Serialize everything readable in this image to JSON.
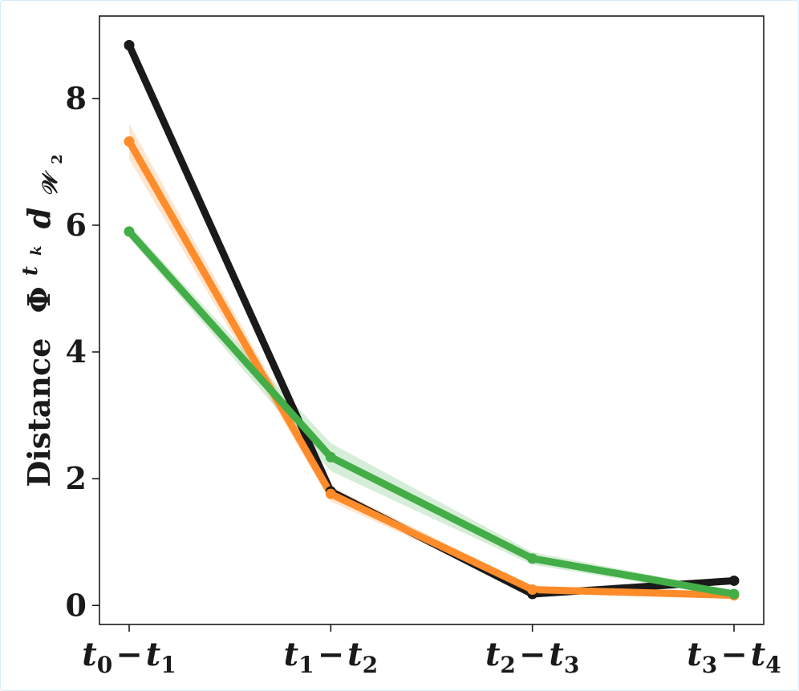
{
  "chart_data": {
    "type": "line",
    "title": "",
    "xlabel": "",
    "ylabel": {
      "text": "Distance",
      "phi": "Φ",
      "phi_sup": "t",
      "phi_sup_sub": "k",
      "d": "d",
      "d_sub": "𝒲",
      "d_sub_sub": "2"
    },
    "categories": [
      {
        "a": "t",
        "a_sub": "0",
        "b": "t",
        "b_sub": "1"
      },
      {
        "a": "t",
        "a_sub": "1",
        "b": "t",
        "b_sub": "2"
      },
      {
        "a": "t",
        "a_sub": "2",
        "b": "t",
        "b_sub": "3"
      },
      {
        "a": "t",
        "a_sub": "3",
        "b": "t",
        "b_sub": "4"
      }
    ],
    "ylim": [
      -0.3,
      9.3
    ],
    "yticks": [
      "0",
      "2",
      "4",
      "6",
      "8"
    ],
    "legend": "none",
    "grid": false,
    "series": [
      {
        "color": "#1a1a1a",
        "values": [
          8.84,
          1.8,
          0.18,
          0.39
        ],
        "band": [
          0,
          0,
          0,
          0
        ]
      },
      {
        "color": "#ff8c2a",
        "values": [
          7.32,
          1.76,
          0.25,
          0.16
        ],
        "band": [
          0.28,
          0.12,
          0.05,
          0.04
        ]
      },
      {
        "color": "#43ad47",
        "values": [
          5.9,
          2.34,
          0.74,
          0.18
        ],
        "band": [
          0.1,
          0.22,
          0.1,
          0.05
        ]
      }
    ]
  }
}
